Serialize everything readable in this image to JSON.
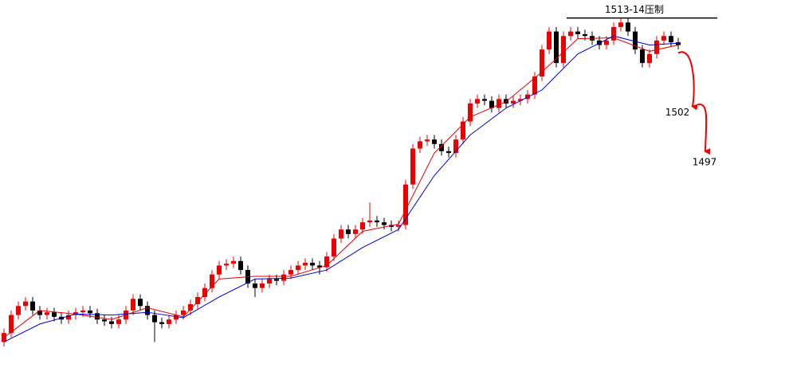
{
  "chart_data": {
    "type": "candlestick",
    "open": [
      1477.5,
      1478.5,
      1480.5,
      1481.5,
      1482,
      1481,
      1480.5,
      1480.8,
      1480.3,
      1480,
      1480.5,
      1480.8,
      1481,
      1480.7,
      1480,
      1479.8,
      1479.5,
      1480,
      1481,
      1482.3,
      1481.5,
      1480.5,
      1479.7,
      1479.5,
      1480,
      1480.5,
      1481,
      1481.7,
      1482.5,
      1483.5,
      1485,
      1486,
      1486.2,
      1486.5,
      1485.5,
      1484,
      1483.5,
      1484,
      1484.5,
      1484.3,
      1485,
      1485.5,
      1486,
      1486.3,
      1486,
      1485.8,
      1487,
      1489,
      1490,
      1489.5,
      1490,
      1490.8,
      1491,
      1490.8,
      1490.5,
      1490.3,
      1490.5,
      1495,
      1499,
      1499.8,
      1500,
      1499.5,
      1498.7,
      1498.5,
      1500,
      1502,
      1504,
      1504.5,
      1504.3,
      1503.5,
      1504.5,
      1504,
      1504.3,
      1504.5,
      1505,
      1507,
      1510,
      1512,
      1508.5,
      1511.5,
      1512,
      1511.7,
      1511.5,
      1511,
      1510.5,
      1511,
      1512.5,
      1513,
      1512,
      1510,
      1508.5,
      1509.5,
      1511,
      1511.5,
      1510.8
    ],
    "high": [
      1479,
      1481,
      1482,
      1482.5,
      1482.5,
      1481.5,
      1481.3,
      1481.3,
      1480.8,
      1481,
      1481.3,
      1481.5,
      1481.5,
      1481.2,
      1480.5,
      1480.3,
      1480.5,
      1481.5,
      1482.8,
      1482.8,
      1482,
      1481,
      1480.2,
      1480.5,
      1481,
      1481.5,
      1482.2,
      1483,
      1484,
      1485.5,
      1486.5,
      1486.7,
      1487,
      1487,
      1486,
      1484.5,
      1484.5,
      1485,
      1485,
      1485.5,
      1486,
      1486.5,
      1486.8,
      1486.8,
      1486.5,
      1487.5,
      1489.5,
      1490.5,
      1490.5,
      1490.5,
      1491.3,
      1493,
      1491.5,
      1491.3,
      1491,
      1491,
      1495.5,
      1499.5,
      1500.3,
      1500.5,
      1500.5,
      1500,
      1499.2,
      1500.5,
      1502.5,
      1504.5,
      1505,
      1505,
      1504.8,
      1505,
      1505,
      1504.8,
      1505,
      1505.5,
      1507.5,
      1510.5,
      1512.5,
      1512.5,
      1512,
      1512.5,
      1512.5,
      1512.2,
      1512,
      1511.5,
      1511.5,
      1513,
      1513.5,
      1513.5,
      1512.5,
      1510.5,
      1510,
      1511.5,
      1512,
      1512,
      1511.3
    ],
    "low": [
      1477,
      1478,
      1480,
      1481,
      1480.5,
      1480,
      1480,
      1479.8,
      1479.5,
      1479.5,
      1480,
      1480.3,
      1480.2,
      1479.5,
      1479.3,
      1479,
      1479,
      1479.5,
      1480.5,
      1481,
      1480,
      1477.5,
      1479,
      1479,
      1479.5,
      1480,
      1480.5,
      1481.2,
      1482,
      1483,
      1484.5,
      1485.5,
      1485.7,
      1485,
      1483.5,
      1482.5,
      1483,
      1483.5,
      1483.8,
      1483.8,
      1484.5,
      1485,
      1485.5,
      1485.5,
      1485,
      1485.3,
      1486.5,
      1488.5,
      1489,
      1489,
      1489.5,
      1490.3,
      1490.3,
      1490,
      1489.8,
      1489.8,
      1490,
      1494.5,
      1498.5,
      1499.3,
      1499,
      1498.2,
      1498,
      1498,
      1499.5,
      1501.5,
      1503.5,
      1503.8,
      1503,
      1503,
      1503.5,
      1503.5,
      1503.8,
      1504,
      1504.5,
      1506.5,
      1509.5,
      1508,
      1508,
      1511,
      1511.2,
      1511,
      1510.5,
      1510,
      1510,
      1510.5,
      1512,
      1511.5,
      1509.5,
      1508,
      1508,
      1509,
      1510.5,
      1510.3,
      1510
    ],
    "close": [
      1478.5,
      1480.5,
      1481.5,
      1482,
      1481,
      1480.5,
      1480.8,
      1480.3,
      1480,
      1480.5,
      1480.8,
      1481,
      1480.7,
      1480,
      1479.8,
      1479.5,
      1480,
      1481,
      1482.3,
      1481.5,
      1480.5,
      1479.7,
      1479.5,
      1480,
      1480.5,
      1481,
      1481.7,
      1482.5,
      1483.5,
      1485,
      1486,
      1486.2,
      1486.5,
      1485.5,
      1484,
      1483.5,
      1484,
      1484.5,
      1484.3,
      1485,
      1485.5,
      1486,
      1486.3,
      1486,
      1485.8,
      1487,
      1489,
      1490,
      1489.5,
      1490,
      1490.8,
      1491,
      1490.8,
      1490.5,
      1490.3,
      1490.5,
      1495,
      1499,
      1499.8,
      1500,
      1499.5,
      1498.7,
      1498.5,
      1500,
      1502,
      1504,
      1504.5,
      1504.3,
      1503.5,
      1504.5,
      1504,
      1504.3,
      1504.5,
      1505,
      1507,
      1510,
      1512,
      1508.5,
      1511.5,
      1512,
      1511.7,
      1511.5,
      1511,
      1510.5,
      1511,
      1512.5,
      1513,
      1512,
      1510,
      1508.5,
      1509.5,
      1511,
      1511.5,
      1510.8,
      1510.5
    ],
    "up_color": "#ee0000",
    "down_color": "#000000",
    "ma_lines": [
      {
        "color": "#dd0000",
        "x": [
          0,
          5,
          10,
          15,
          20,
          25,
          30,
          35,
          40,
          45,
          50,
          55,
          60,
          65,
          70,
          75,
          80,
          85,
          90,
          94
        ],
        "values": [
          1478,
          1481,
          1480.6,
          1480,
          1481.3,
          1480.3,
          1484.5,
          1484.8,
          1484.8,
          1486,
          1489.8,
          1490.6,
          1498.5,
          1502.5,
          1504.2,
          1507.5,
          1511.2,
          1511.3,
          1509.8,
          1510.5
        ]
      },
      {
        "color": "#0000cc",
        "x": [
          0,
          5,
          10,
          15,
          20,
          25,
          30,
          35,
          40,
          45,
          50,
          55,
          60,
          65,
          70,
          75,
          80,
          85,
          90,
          94
        ],
        "values": [
          1477.5,
          1479.5,
          1480.6,
          1480.5,
          1480.8,
          1480.2,
          1482.5,
          1484.5,
          1484.6,
          1485.5,
          1488,
          1490,
          1496,
          1500.5,
          1503.5,
          1505.5,
          1509.5,
          1511.5,
          1510.5,
          1510.7
        ]
      }
    ],
    "resistance": {
      "value": 1513.5,
      "label": "1513-14压制"
    },
    "targets": [
      1502,
      1497
    ],
    "target_color": "#ee0000",
    "ylim": [
      1472.5,
      1515.5
    ]
  }
}
